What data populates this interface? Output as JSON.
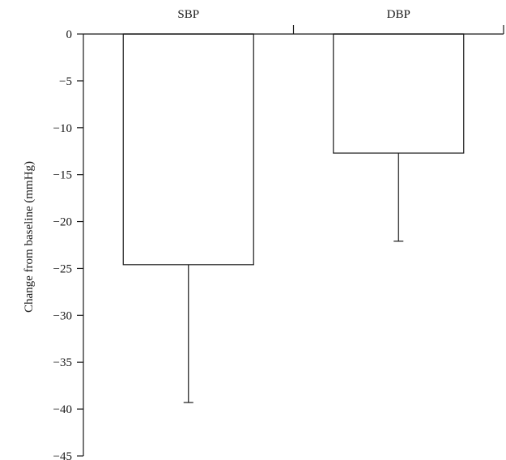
{
  "chart_data": {
    "type": "bar",
    "categories": [
      "SBP",
      "DBP"
    ],
    "values": [
      -24.6,
      -12.7
    ],
    "error_low": [
      -39.3,
      -22.1
    ],
    "ylabel": "Change from baseline (mmHg)",
    "xlabel": "",
    "title": "",
    "ylim": [
      -45,
      0
    ],
    "yticks": [
      0,
      -5,
      -10,
      -15,
      -20,
      -25,
      -30,
      -35,
      -40,
      -45
    ],
    "ytick_labels": [
      "0",
      "−5",
      "−10",
      "−15",
      "−20",
      "−25",
      "−30",
      "−35",
      "−40",
      "−45"
    ],
    "x_axis_position": "top",
    "grid": false,
    "legend": "none",
    "colors": {
      "bar_fill": "#ffffff",
      "bar_stroke": "#1a1a1a"
    }
  }
}
